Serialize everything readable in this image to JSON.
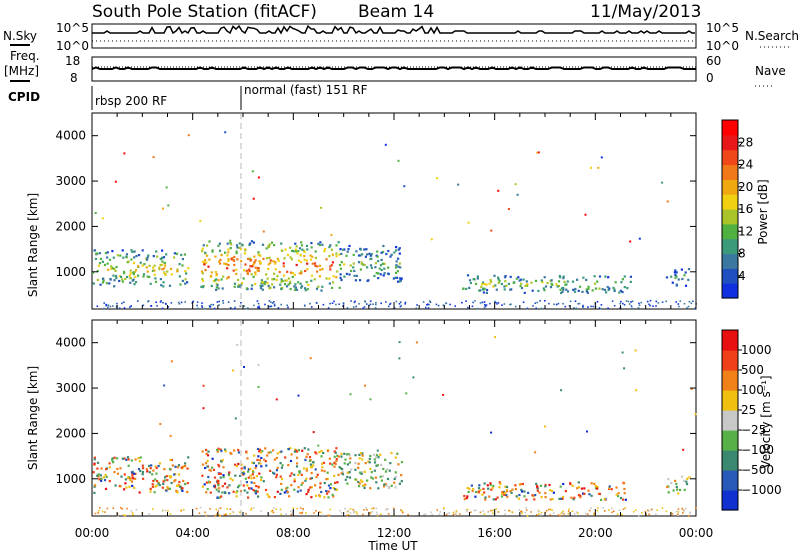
{
  "header": {
    "station": "South Pole Station (fitACF)",
    "beam": "Beam 14",
    "date": "11/May/2013"
  },
  "top_panels": {
    "nsky_label": "N.Sky",
    "nsearch_label": "N.Search",
    "freq_label_1": "Freq.",
    "freq_label_2": "[MHz]",
    "nave_label": "Nave",
    "cpid_label": "CPID",
    "nsky_ticks": [
      "10^5",
      "10^0"
    ],
    "nsearch_ticks": [
      "10^5",
      "10^0"
    ],
    "freq_ticks": [
      "18",
      "8"
    ],
    "nave_ticks": [
      "60",
      "0"
    ],
    "cpid_modes": [
      {
        "label": "rbsp 200 RF",
        "start_hour": 0
      },
      {
        "label": "normal (fast) 151 RF",
        "start_hour": 6
      }
    ]
  },
  "chart_data": [
    {
      "type": "heatmap",
      "ylabel": "Slant Range [km]",
      "xlabel": "Time UT",
      "xlim_hours": [
        0,
        24
      ],
      "ylim": [
        180,
        4500
      ],
      "yticks": [
        "1000",
        "2000",
        "3000",
        "4000"
      ],
      "xticks": [
        "00:00",
        "04:00",
        "08:00",
        "12:00",
        "16:00",
        "20:00",
        "00:00"
      ],
      "colorbar": {
        "label": "Power [dB]",
        "tick_labels": [
          "4",
          "8",
          "12",
          "16",
          "20",
          "24",
          "28"
        ],
        "colors": [
          "#1030e0",
          "#2050c0",
          "#3a78a0",
          "#3a9a7a",
          "#50b040",
          "#a8c428",
          "#f0d010",
          "#f0a810",
          "#f07818",
          "#f04818",
          "#e81818",
          "#ff0000"
        ]
      },
      "scatter_regions": [
        {
          "t0": 0.0,
          "t1": 3.8,
          "r0": 700,
          "r1": 1500,
          "level": 0.55
        },
        {
          "t0": 4.3,
          "t1": 9.8,
          "r0": 600,
          "r1": 1700,
          "level": 0.78
        },
        {
          "t0": 9.8,
          "t1": 12.3,
          "r0": 800,
          "r1": 1600,
          "level": 0.35
        },
        {
          "t0": 14.7,
          "t1": 21.4,
          "r0": 550,
          "r1": 950,
          "level": 0.42
        },
        {
          "t0": 22.8,
          "t1": 23.7,
          "r0": 700,
          "r1": 1100,
          "level": 0.2
        }
      ]
    },
    {
      "type": "heatmap",
      "ylabel": "Slant Range [km]",
      "xlabel": "Time UT",
      "xlim_hours": [
        0,
        24
      ],
      "ylim": [
        180,
        4500
      ],
      "yticks": [
        "1000",
        "2000",
        "3000",
        "4000"
      ],
      "xticks": [
        "00:00",
        "04:00",
        "08:00",
        "12:00",
        "16:00",
        "20:00",
        "00:00"
      ],
      "colorbar": {
        "label": "Velocity [m s⁻¹]",
        "tick_labels": [
          "1000",
          "500",
          "100",
          "25",
          "−25",
          "−100",
          "−500",
          "−1000"
        ],
        "colors": [
          "#1030d0",
          "#2858b8",
          "#3a8870",
          "#58b048",
          "#c8c8c8",
          "#f0c010",
          "#f08018",
          "#f04018",
          "#e81010"
        ]
      },
      "scatter_regions": [
        {
          "t0": 0.0,
          "t1": 3.8,
          "r0": 700,
          "r1": 1500,
          "level": 0.6
        },
        {
          "t0": 4.3,
          "t1": 9.8,
          "r0": 600,
          "r1": 1700,
          "level": 0.7
        },
        {
          "t0": 9.8,
          "t1": 12.3,
          "r0": 800,
          "r1": 1600,
          "level": 0.3
        },
        {
          "t0": 14.7,
          "t1": 21.4,
          "r0": 550,
          "r1": 950,
          "level": 0.65
        },
        {
          "t0": 22.8,
          "t1": 23.7,
          "r0": 700,
          "r1": 1100,
          "level": 0.4
        }
      ]
    }
  ]
}
